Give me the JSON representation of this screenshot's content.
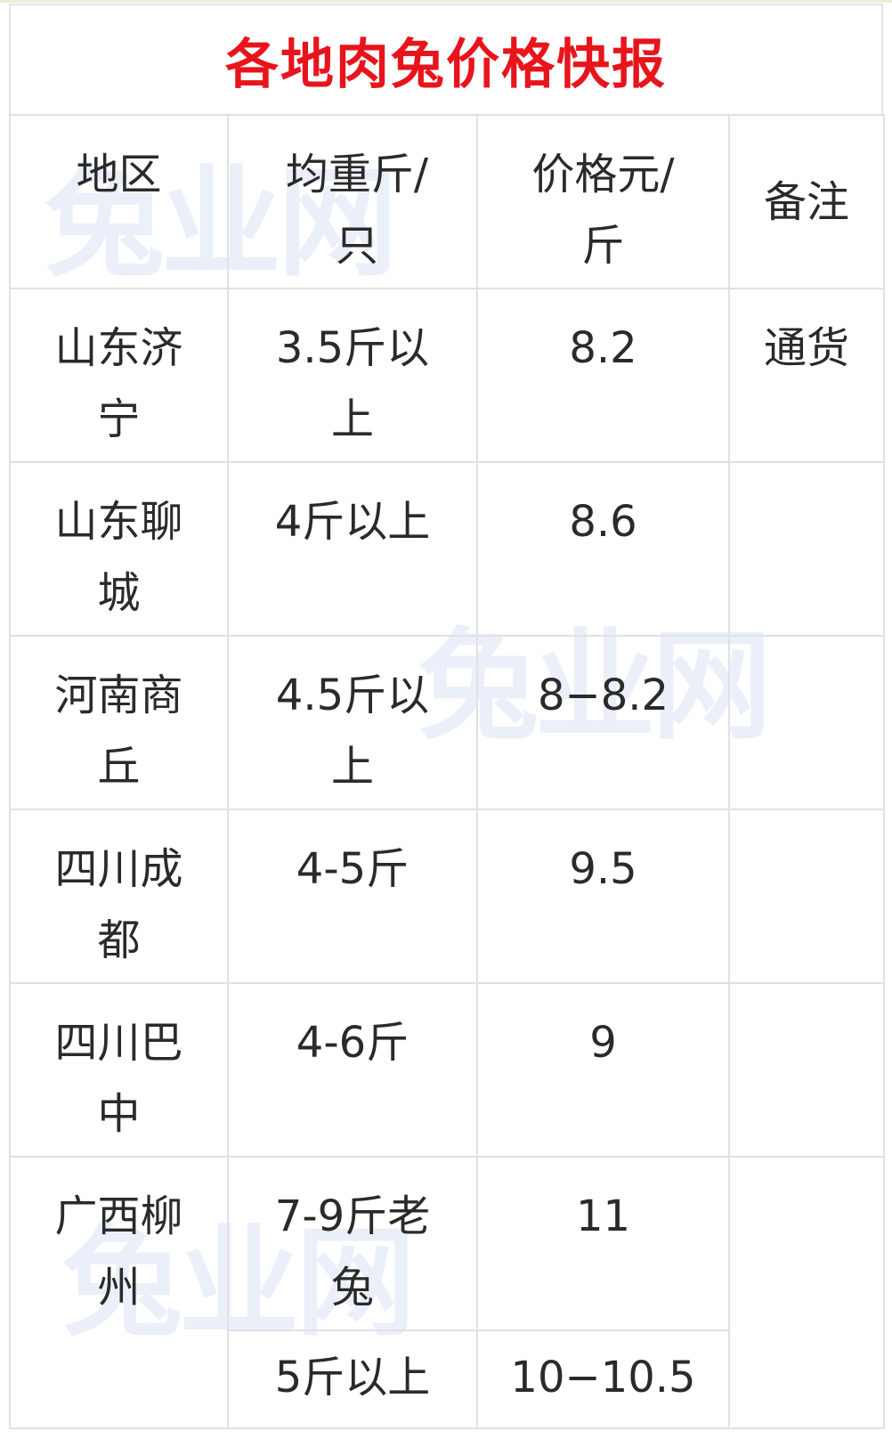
{
  "title": "各地肉兔价格快报",
  "watermark": "兔业网",
  "colors": {
    "title": "#e8141c",
    "border": "#dfe1e7",
    "watermark": "#dfe6f6"
  },
  "headers": [
    "地区",
    "均重斤/只",
    "价格元/斤",
    "备注"
  ],
  "rows": [
    {
      "region": "山东济宁",
      "weight": "3.5斤以上",
      "price": "8.2",
      "note": "通货"
    },
    {
      "region": "山东聊城",
      "weight": "4斤以上",
      "price": "8.6",
      "note": ""
    },
    {
      "region": "河南商丘",
      "weight": "4.5斤以上",
      "price": "8−8.2",
      "note": ""
    },
    {
      "region": "四川成都",
      "weight": "4-5斤",
      "price": "9.5",
      "note": ""
    },
    {
      "region": "四川巴中",
      "weight": "4-6斤",
      "price": "9",
      "note": ""
    },
    {
      "region": "广西柳州",
      "weight": "7-9斤老兔",
      "price": "11",
      "note": ""
    },
    {
      "region": "",
      "weight": "5斤以上",
      "price": "10−10.5",
      "note": ""
    }
  ]
}
